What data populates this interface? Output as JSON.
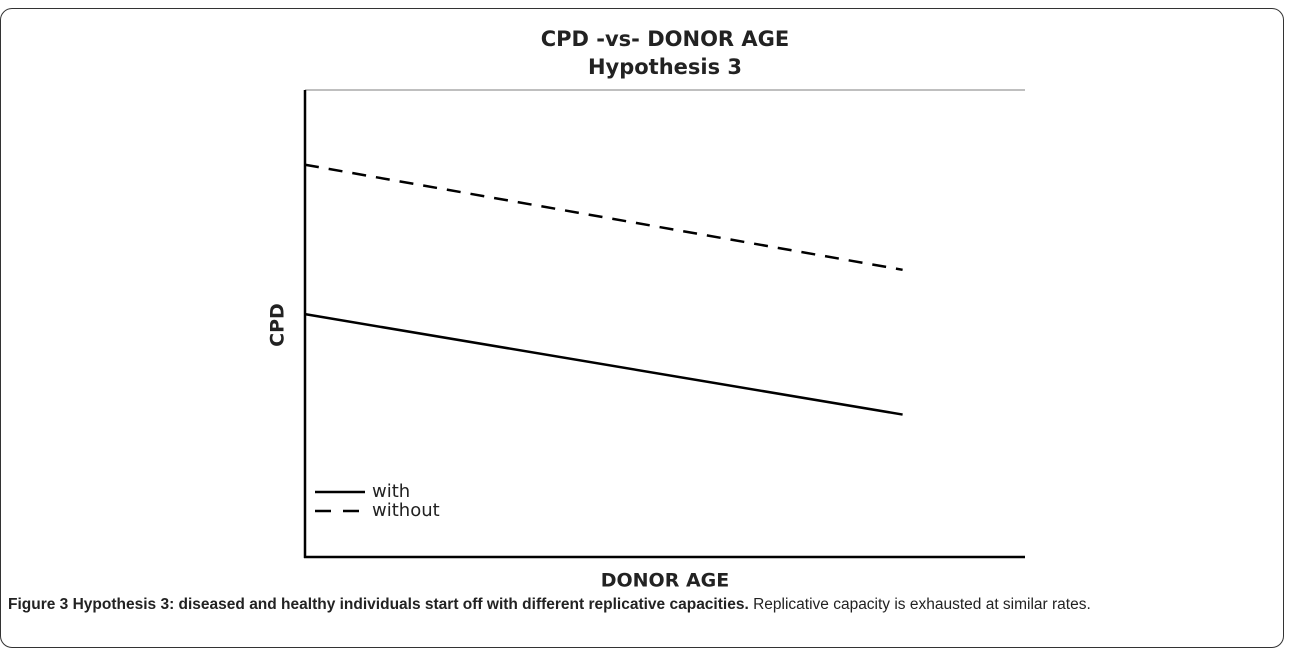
{
  "chart_data": {
    "type": "line",
    "title": "CPD -vs- DONOR AGE",
    "subtitle": "Hypothesis 3",
    "xlabel": "DONOR AGE",
    "ylabel": "CPD",
    "x": [
      0,
      83
    ],
    "xlim": [
      0,
      100
    ],
    "ylim": [
      0,
      100
    ],
    "series": [
      {
        "name": "with",
        "color": "#000000",
        "linestyle": "solid",
        "values": [
          52,
          30.5
        ]
      },
      {
        "name": "without",
        "color": "#000000",
        "linestyle": "dashed",
        "values": [
          84,
          61.5
        ]
      }
    ],
    "legend": "lower left"
  },
  "caption": {
    "label": "Figure 3 Hypothesis 3: diseased and healthy individuals start off with different replicative capacities.",
    "text": "Replicative capacity is exhausted at similar rates."
  }
}
